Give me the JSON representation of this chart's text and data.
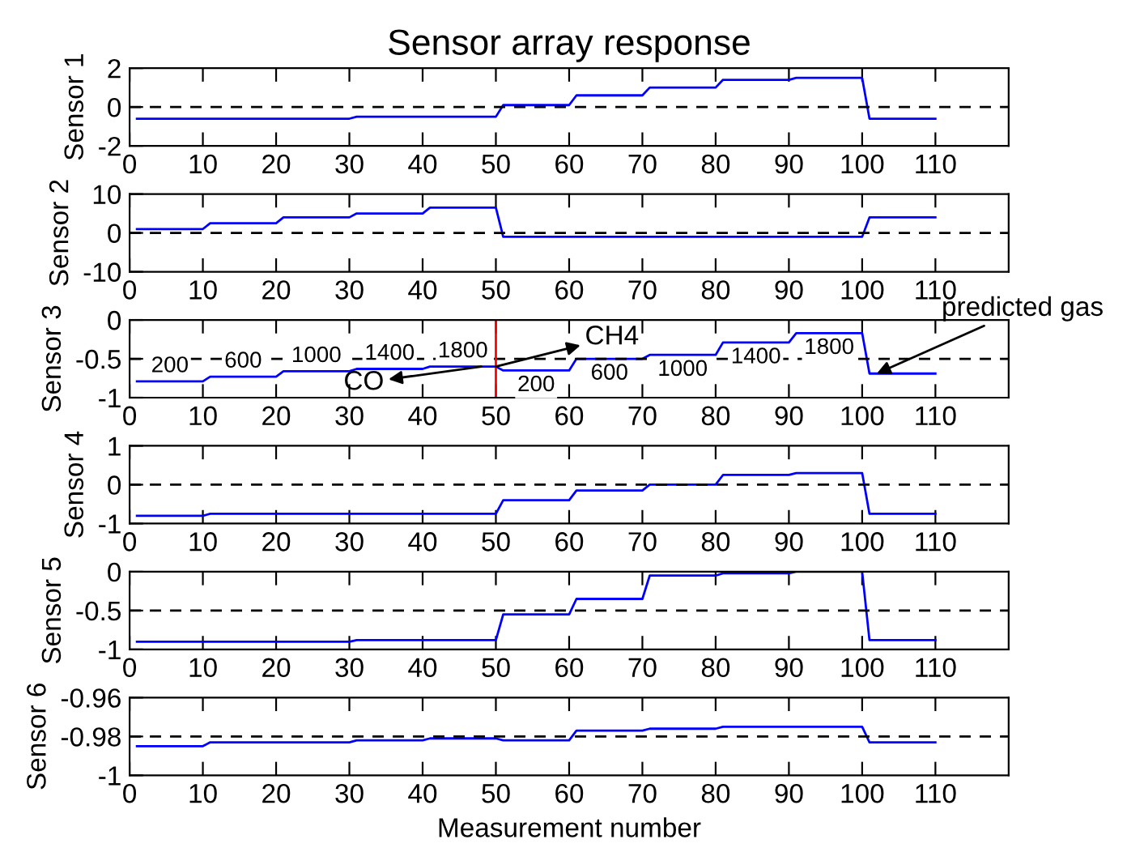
{
  "chart_data": [
    {
      "type": "line",
      "title": "Sensor array response",
      "ylabel": "Sensor 1",
      "x": [
        1,
        10,
        11,
        20,
        21,
        30,
        31,
        40,
        41,
        50,
        51,
        60,
        61,
        70,
        71,
        80,
        81,
        90,
        91,
        100,
        101,
        110
      ],
      "series": [
        {
          "color": "#0000ff",
          "values": [
            -0.6,
            -0.6,
            -0.6,
            -0.6,
            -0.6,
            -0.6,
            -0.5,
            -0.5,
            -0.5,
            -0.5,
            0.1,
            0.1,
            0.6,
            0.6,
            1.0,
            1.0,
            1.4,
            1.4,
            1.5,
            1.5,
            -0.6,
            -0.6
          ]
        }
      ],
      "xlim": [
        0,
        120
      ],
      "xticks": [
        0,
        10,
        20,
        30,
        40,
        50,
        60,
        70,
        80,
        90,
        100,
        110
      ],
      "ylim": [
        -2,
        2
      ],
      "yticks": [
        -2,
        0,
        2
      ],
      "ref_lines": [
        {
          "axis": "y",
          "value": 0,
          "color": "#000000",
          "line_style": "dashed"
        }
      ]
    },
    {
      "type": "line",
      "ylabel": "Sensor 2",
      "x": [
        1,
        10,
        11,
        20,
        21,
        30,
        31,
        40,
        41,
        50,
        51,
        60,
        61,
        70,
        71,
        80,
        81,
        90,
        91,
        100,
        101,
        110
      ],
      "series": [
        {
          "color": "#0000ff",
          "values": [
            1,
            1,
            2.5,
            2.5,
            4,
            4,
            5,
            5,
            6.5,
            6.5,
            -1,
            -1,
            -1,
            -1,
            -1,
            -1,
            -1,
            -1,
            -1,
            -1,
            4,
            4
          ]
        }
      ],
      "xlim": [
        0,
        120
      ],
      "xticks": [
        0,
        10,
        20,
        30,
        40,
        50,
        60,
        70,
        80,
        90,
        100,
        110
      ],
      "ylim": [
        -10,
        10
      ],
      "yticks": [
        -10,
        0,
        10
      ],
      "ref_lines": [
        {
          "axis": "y",
          "value": 0,
          "color": "#000000",
          "line_style": "dashed"
        }
      ]
    },
    {
      "type": "line",
      "ylabel": "Sensor 3",
      "x": [
        1,
        10,
        11,
        20,
        21,
        30,
        31,
        40,
        41,
        50,
        51,
        60,
        61,
        70,
        71,
        80,
        81,
        90,
        91,
        100,
        101,
        110
      ],
      "series": [
        {
          "color": "#0000ff",
          "values": [
            -0.79,
            -0.79,
            -0.73,
            -0.73,
            -0.66,
            -0.66,
            -0.63,
            -0.63,
            -0.6,
            -0.6,
            -0.65,
            -0.65,
            -0.5,
            -0.5,
            -0.45,
            -0.45,
            -0.29,
            -0.29,
            -0.17,
            -0.17,
            -0.69,
            -0.69
          ]
        }
      ],
      "xlim": [
        0,
        120
      ],
      "xticks": [
        0,
        10,
        20,
        30,
        40,
        50,
        60,
        70,
        80,
        90,
        100,
        110
      ],
      "ylim": [
        -1,
        0
      ],
      "yticks": [
        -1,
        -0.5,
        0
      ],
      "ref_lines": [
        {
          "axis": "y",
          "value": -0.5,
          "color": "#000000",
          "line_style": "dashed"
        },
        {
          "axis": "x",
          "value": 50,
          "color": "#ff0000",
          "line_style": "solid"
        }
      ],
      "annotations": [
        {
          "text": "200",
          "x": 5.5,
          "y": -0.79
        },
        {
          "text": "600",
          "x": 15.5,
          "y": -0.73
        },
        {
          "text": "1000",
          "x": 25.5,
          "y": -0.66
        },
        {
          "text": "1400",
          "x": 35.5,
          "y": -0.63
        },
        {
          "text": "1800",
          "x": 45.5,
          "y": -0.6
        },
        {
          "text": "200",
          "x": 55.5,
          "y": -0.65
        },
        {
          "text": "600",
          "x": 65.5,
          "y": -0.5
        },
        {
          "text": "1000",
          "x": 75.5,
          "y": -0.45
        },
        {
          "text": "1400",
          "x": 85.5,
          "y": -0.29
        },
        {
          "text": "1800",
          "x": 95.5,
          "y": -0.17
        },
        {
          "text": "CH4",
          "x": 50,
          "y": -0.6
        },
        {
          "text": "CO",
          "x": 48,
          "y": -0.6
        },
        {
          "text": "predicted gas",
          "x": 102,
          "y": -0.69
        }
      ]
    },
    {
      "type": "line",
      "ylabel": "Sensor 4",
      "x": [
        1,
        10,
        11,
        20,
        21,
        30,
        31,
        40,
        41,
        50,
        51,
        60,
        61,
        70,
        71,
        80,
        81,
        90,
        91,
        100,
        101,
        110
      ],
      "series": [
        {
          "color": "#0000ff",
          "values": [
            -0.8,
            -0.8,
            -0.75,
            -0.75,
            -0.75,
            -0.75,
            -0.75,
            -0.75,
            -0.75,
            -0.75,
            -0.4,
            -0.4,
            -0.15,
            -0.15,
            0,
            0,
            0.25,
            0.25,
            0.3,
            0.3,
            -0.75,
            -0.75
          ]
        }
      ],
      "xlim": [
        0,
        120
      ],
      "xticks": [
        0,
        10,
        20,
        30,
        40,
        50,
        60,
        70,
        80,
        90,
        100,
        110
      ],
      "ylim": [
        -1,
        1
      ],
      "yticks": [
        -1,
        0,
        1
      ],
      "ref_lines": [
        {
          "axis": "y",
          "value": 0,
          "color": "#000000",
          "line_style": "dashed"
        }
      ]
    },
    {
      "type": "line",
      "ylabel": "Sensor 5",
      "x": [
        1,
        10,
        11,
        20,
        21,
        30,
        31,
        40,
        41,
        50,
        51,
        60,
        61,
        70,
        71,
        80,
        81,
        90,
        91,
        100,
        101,
        110
      ],
      "series": [
        {
          "color": "#0000ff",
          "values": [
            -0.9,
            -0.9,
            -0.9,
            -0.9,
            -0.9,
            -0.9,
            -0.88,
            -0.88,
            -0.88,
            -0.88,
            -0.55,
            -0.55,
            -0.35,
            -0.35,
            -0.05,
            -0.05,
            -0.02,
            -0.02,
            0,
            0,
            -0.88,
            -0.88
          ]
        }
      ],
      "xlim": [
        0,
        120
      ],
      "xticks": [
        0,
        10,
        20,
        30,
        40,
        50,
        60,
        70,
        80,
        90,
        100,
        110
      ],
      "ylim": [
        -1,
        0
      ],
      "yticks": [
        -1,
        -0.5,
        0
      ],
      "ref_lines": [
        {
          "axis": "y",
          "value": -0.5,
          "color": "#000000",
          "line_style": "dashed"
        }
      ]
    },
    {
      "type": "line",
      "ylabel": "Sensor 6",
      "xlabel": "Measurement number",
      "x": [
        1,
        10,
        11,
        20,
        21,
        30,
        31,
        40,
        41,
        50,
        51,
        60,
        61,
        70,
        71,
        80,
        81,
        90,
        91,
        100,
        101,
        110
      ],
      "series": [
        {
          "color": "#0000ff",
          "values": [
            -0.985,
            -0.985,
            -0.983,
            -0.983,
            -0.983,
            -0.983,
            -0.982,
            -0.982,
            -0.981,
            -0.981,
            -0.982,
            -0.982,
            -0.977,
            -0.977,
            -0.976,
            -0.976,
            -0.975,
            -0.975,
            -0.975,
            -0.975,
            -0.983,
            -0.983
          ]
        }
      ],
      "xlim": [
        0,
        120
      ],
      "xticks": [
        0,
        10,
        20,
        30,
        40,
        50,
        60,
        70,
        80,
        90,
        100,
        110
      ],
      "ylim": [
        -1,
        -0.96
      ],
      "yticks": [
        -1,
        -0.98,
        -0.96
      ],
      "ref_lines": [
        {
          "axis": "y",
          "value": -0.98,
          "color": "#000000",
          "line_style": "dashed"
        }
      ]
    }
  ]
}
